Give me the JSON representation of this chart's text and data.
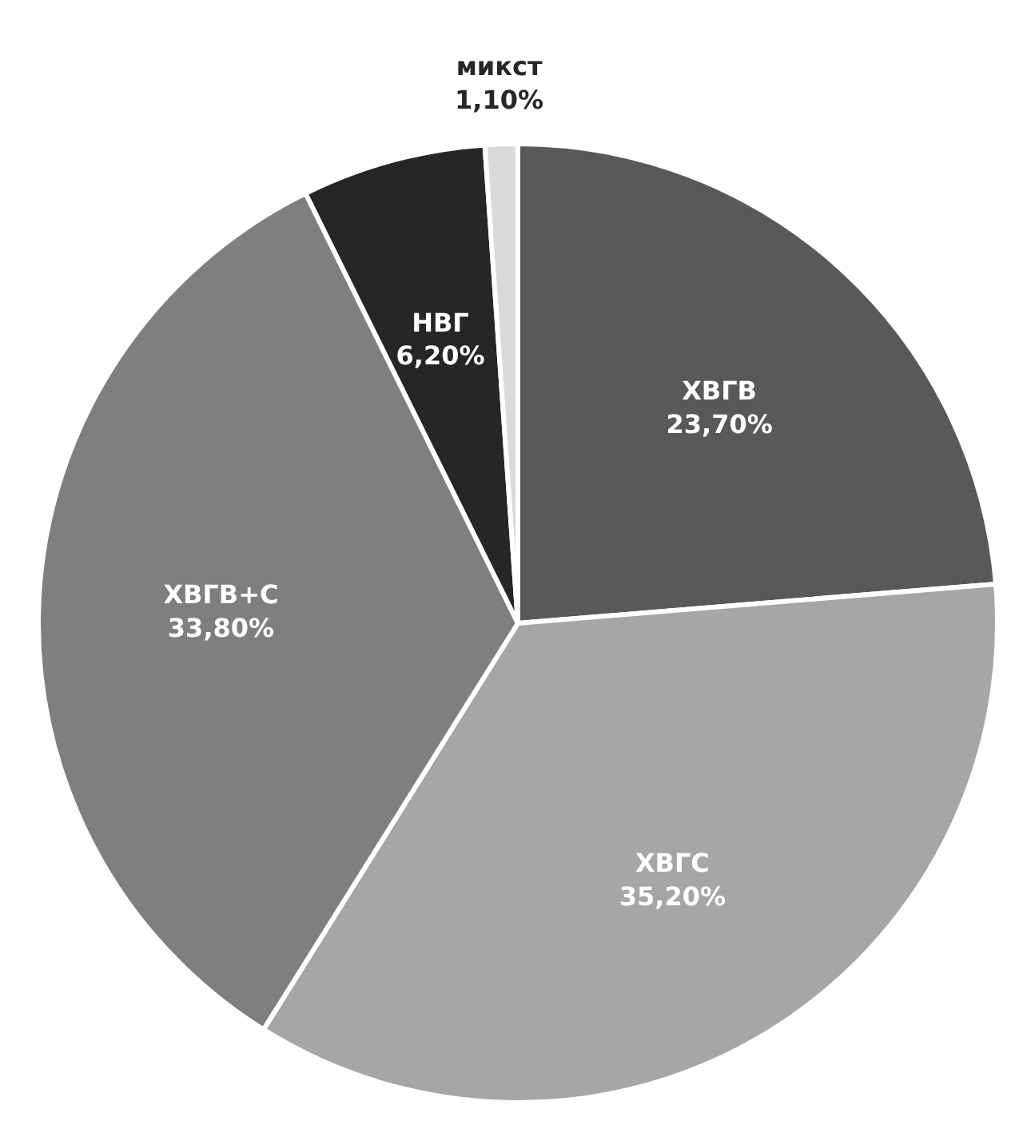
{
  "chart_data": {
    "type": "pie",
    "categories": [
      "ХВГВ",
      "ХВГС",
      "ХВГВ+С",
      "НВГ",
      "микст"
    ],
    "values": [
      23.7,
      35.2,
      33.8,
      6.2,
      1.1
    ],
    "colors": [
      "#595959",
      "#a6a6a6",
      "#7f7f7f",
      "#262626",
      "#d9d9d9"
    ],
    "value_labels": [
      "23,70%",
      "35,20%",
      "33,80%",
      "6,20%",
      "1,10%"
    ],
    "legend": false
  }
}
